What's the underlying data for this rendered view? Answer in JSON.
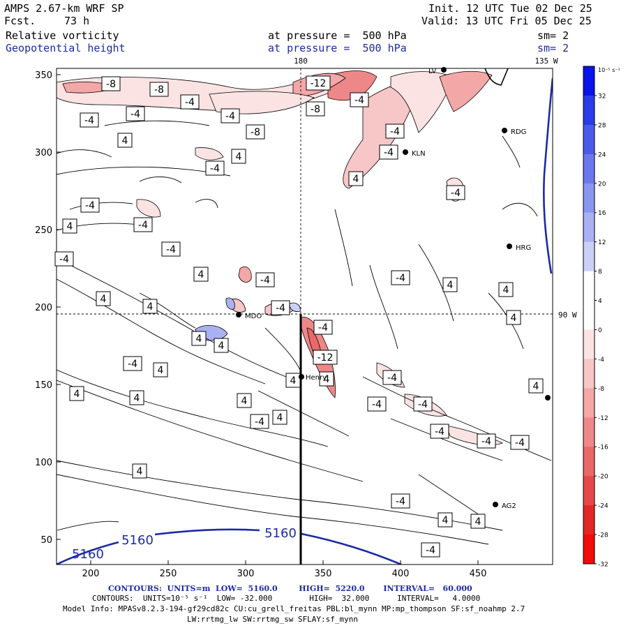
{
  "header": {
    "model": "AMPS 2.67-km WRF SP",
    "fcst_label": "Fcst.",
    "fcst_value": "73 h",
    "init": "Init. 12 UTC Tue 02 Dec 25",
    "valid": "Valid: 13 UTC Fri 05 Dec 25",
    "field1": "Relative vorticity",
    "field2": "Geopotential height",
    "pressure1": "at pressure =  500 hPa",
    "pressure2": "at pressure =  500 hPa",
    "sm1": "sm= 2",
    "sm2": "sm= 2"
  },
  "axes": {
    "x_ticks": [
      "200",
      "250",
      "300",
      "350",
      "400",
      "450"
    ],
    "y_ticks": [
      "350",
      "300",
      "250",
      "200",
      "150",
      "100",
      "50"
    ],
    "top_labels": [
      "180",
      "135 W"
    ],
    "right_label": "90 W"
  },
  "colorbar": {
    "unit": "10⁻⁵ s⁻¹",
    "labels": [
      "32",
      "28",
      "24",
      "20",
      "16",
      "12",
      "8",
      "4",
      "0",
      "-4",
      "-8",
      "-12",
      "-16",
      "-20",
      "-24",
      "-28",
      "-32"
    ],
    "colors": [
      "#0a14e6",
      "#2b3be8",
      "#4a5ae9",
      "#6a78ec",
      "#8a95ef",
      "#aab1f3",
      "#cbd0f7",
      "#ffffff",
      "#ffffff",
      "#fbe3e3",
      "#f7c6c6",
      "#f3a7a7",
      "#ee8888",
      "#e96868",
      "#e54848",
      "#e12828",
      "#f30a0a"
    ]
  },
  "stations": [
    {
      "id": "LV",
      "label": "LV"
    },
    {
      "id": "RDG",
      "label": "RDG"
    },
    {
      "id": "KLN",
      "label": "KLN"
    },
    {
      "id": "HRG",
      "label": "HRG"
    },
    {
      "id": "MDO",
      "label": "MDO"
    },
    {
      "id": "HEN",
      "label": "Henry"
    },
    {
      "id": "AG2",
      "label": "AG2"
    }
  ],
  "height_labels": [
    "5160",
    "5160",
    "5160"
  ],
  "vort_labels": [
    "-8",
    "-8",
    "-4",
    "-4",
    "-4",
    "-4",
    "-8",
    "-12",
    "-4",
    "-8",
    "-4",
    "-4",
    "4",
    "4",
    "-4",
    "4",
    "-4",
    "-4",
    "4",
    "-4",
    "-4",
    "-4",
    "4",
    "-4",
    "-4",
    "4",
    "4",
    "4",
    "4",
    "-4",
    "-4",
    "4",
    "4",
    "4",
    "-4",
    "-12",
    "4",
    "4",
    "-4",
    "4",
    "4",
    "4",
    "4",
    "4",
    "4",
    "-4",
    "-4",
    "-4",
    "-4",
    "-4",
    "-4",
    "4",
    "-4",
    "4",
    "4",
    "-4",
    "4",
    "4"
  ],
  "footer": {
    "line1a": "CONTOURS:  UNITS=m  LOW=  5160.0        HIGH=  5220.0       INTERVAL=   60.000",
    "line2": "CONTOURS:  UNITS=10⁻⁵ s⁻¹  LOW= -32.000        HIGH=  32.000      INTERVAL=   4.0000",
    "line3": "Model Info: MPASv8.2.3-194-gf29cd82c CU:cu_grell_freitas PBL:bl_mynn MP:mp_thompson SF:sf_noahmp 2.7",
    "line4": "LW:rrtmg_lw SW:rrtmg_sw SFLAY:sf_mynn"
  }
}
